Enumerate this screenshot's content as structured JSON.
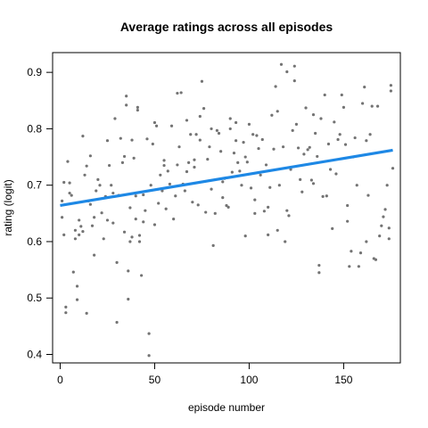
{
  "chart_data": {
    "type": "scatter",
    "title": "Average ratings across all episodes",
    "xlabel": "episode number",
    "ylabel": "rating (logit)",
    "xlim": [
      -4,
      180
    ],
    "ylim": [
      0.385,
      0.935
    ],
    "x_ticks": [
      0,
      50,
      100,
      150
    ],
    "y_ticks": [
      0.4,
      0.5,
      0.6,
      0.7,
      0.8,
      0.9
    ],
    "grid": false,
    "point_color": "#737373",
    "trend_color": "#1E88E5",
    "series": [
      {
        "values": [
          [
            1,
            0.672
          ],
          [
            1,
            0.643
          ],
          [
            2,
            0.705
          ],
          [
            2,
            0.612
          ],
          [
            3,
            0.484
          ],
          [
            3,
            0.474
          ],
          [
            4,
            0.742
          ],
          [
            5,
            0.686
          ],
          [
            5,
            0.704
          ],
          [
            6,
            0.682
          ],
          [
            7,
            0.546
          ],
          [
            8,
            0.62
          ],
          [
            8,
            0.605
          ],
          [
            9,
            0.497
          ],
          [
            9,
            0.521
          ],
          [
            10,
            0.612
          ],
          [
            10,
            0.638
          ],
          [
            11,
            0.627
          ],
          [
            12,
            0.618
          ],
          [
            12,
            0.787
          ],
          [
            13,
            0.718
          ],
          [
            14,
            0.734
          ],
          [
            14,
            0.473
          ],
          [
            15,
            0.672
          ],
          [
            16,
            0.752
          ],
          [
            16,
            0.666
          ],
          [
            17,
            0.628
          ],
          [
            18,
            0.576
          ],
          [
            18,
            0.643
          ],
          [
            19,
            0.69
          ],
          [
            20,
            0.71
          ],
          [
            21,
            0.7
          ],
          [
            22,
            0.651
          ],
          [
            23,
            0.605
          ],
          [
            24,
            0.68
          ],
          [
            25,
            0.779
          ],
          [
            25,
            0.638
          ],
          [
            26,
            0.735
          ],
          [
            27,
            0.7
          ],
          [
            28,
            0.633
          ],
          [
            28,
            0.686
          ],
          [
            29,
            0.818
          ],
          [
            30,
            0.563
          ],
          [
            30,
            0.457
          ],
          [
            31,
            0.682
          ],
          [
            32,
            0.783
          ],
          [
            33,
            0.74
          ],
          [
            34,
            0.617
          ],
          [
            34,
            0.751
          ],
          [
            35,
            0.842
          ],
          [
            35,
            0.858
          ],
          [
            36,
            0.498
          ],
          [
            36,
            0.548
          ],
          [
            37,
            0.6
          ],
          [
            37,
            0.66
          ],
          [
            38,
            0.78
          ],
          [
            38,
            0.608
          ],
          [
            39,
            0.748
          ],
          [
            40,
            0.681
          ],
          [
            40,
            0.64
          ],
          [
            41,
            0.833
          ],
          [
            41,
            0.838
          ],
          [
            42,
            0.611
          ],
          [
            42,
            0.6
          ],
          [
            43,
            0.54
          ],
          [
            44,
            0.683
          ],
          [
            44,
            0.635
          ],
          [
            45,
            0.655
          ],
          [
            46,
            0.782
          ],
          [
            47,
            0.437
          ],
          [
            47,
            0.398
          ],
          [
            48,
            0.7
          ],
          [
            49,
            0.773
          ],
          [
            50,
            0.63
          ],
          [
            50,
            0.811
          ],
          [
            51,
            0.805
          ],
          [
            52,
            0.668
          ],
          [
            53,
            0.718
          ],
          [
            54,
            0.69
          ],
          [
            55,
            0.744
          ],
          [
            55,
            0.735
          ],
          [
            56,
            0.658
          ],
          [
            57,
            0.725
          ],
          [
            58,
            0.702
          ],
          [
            59,
            0.805
          ],
          [
            60,
            0.64
          ],
          [
            61,
            0.681
          ],
          [
            62,
            0.736
          ],
          [
            62,
            0.863
          ],
          [
            63,
            0.768
          ],
          [
            64,
            0.864
          ],
          [
            65,
            0.702
          ],
          [
            66,
            0.69
          ],
          [
            67,
            0.815
          ],
          [
            67,
            0.724
          ],
          [
            68,
            0.74
          ],
          [
            69,
            0.79
          ],
          [
            70,
            0.67
          ],
          [
            71,
            0.745
          ],
          [
            71,
            0.732
          ],
          [
            72,
            0.79
          ],
          [
            73,
            0.665
          ],
          [
            74,
            0.78
          ],
          [
            74,
            0.822
          ],
          [
            75,
            0.884
          ],
          [
            76,
            0.836
          ],
          [
            77,
            0.652
          ],
          [
            78,
            0.746
          ],
          [
            79,
            0.768
          ],
          [
            80,
            0.8
          ],
          [
            80,
            0.693
          ],
          [
            81,
            0.593
          ],
          [
            82,
            0.65
          ],
          [
            83,
            0.797
          ],
          [
            84,
            0.792
          ],
          [
            85,
            0.76
          ],
          [
            86,
            0.678
          ],
          [
            86,
            0.706
          ],
          [
            87,
            0.712
          ],
          [
            88,
            0.664
          ],
          [
            89,
            0.661
          ],
          [
            90,
            0.8
          ],
          [
            90,
            0.818
          ],
          [
            91,
            0.723
          ],
          [
            92,
            0.757
          ],
          [
            93,
            0.811
          ],
          [
            93,
            0.779
          ],
          [
            94,
            0.74
          ],
          [
            95,
            0.725
          ],
          [
            96,
            0.7
          ],
          [
            97,
            0.776
          ],
          [
            98,
            0.61
          ],
          [
            98,
            0.75
          ],
          [
            99,
            0.741
          ],
          [
            100,
            0.808
          ],
          [
            101,
            0.695
          ],
          [
            102,
            0.79
          ],
          [
            103,
            0.674
          ],
          [
            103,
            0.65
          ],
          [
            104,
            0.788
          ],
          [
            105,
            0.765
          ],
          [
            106,
            0.718
          ],
          [
            107,
            0.781
          ],
          [
            108,
            0.654
          ],
          [
            109,
            0.736
          ],
          [
            110,
            0.612
          ],
          [
            110,
            0.661
          ],
          [
            111,
            0.696
          ],
          [
            112,
            0.824
          ],
          [
            113,
            0.764
          ],
          [
            114,
            0.875
          ],
          [
            115,
            0.62
          ],
          [
            115,
            0.831
          ],
          [
            116,
            0.7
          ],
          [
            117,
            0.914
          ],
          [
            118,
            0.768
          ],
          [
            119,
            0.6
          ],
          [
            120,
            0.655
          ],
          [
            120,
            0.901
          ],
          [
            121,
            0.646
          ],
          [
            122,
            0.728
          ],
          [
            123,
            0.797
          ],
          [
            124,
            0.885
          ],
          [
            124,
            0.911
          ],
          [
            125,
            0.808
          ],
          [
            126,
            0.766
          ],
          [
            127,
            0.71
          ],
          [
            128,
            0.688
          ],
          [
            129,
            0.755
          ],
          [
            130,
            0.837
          ],
          [
            131,
            0.763
          ],
          [
            132,
            0.767
          ],
          [
            133,
            0.709
          ],
          [
            134,
            0.703
          ],
          [
            134,
            0.825
          ],
          [
            135,
            0.792
          ],
          [
            136,
            0.751
          ],
          [
            137,
            0.545
          ],
          [
            137,
            0.558
          ],
          [
            138,
            0.818
          ],
          [
            139,
            0.68
          ],
          [
            140,
            0.86
          ],
          [
            141,
            0.681
          ],
          [
            142,
            0.773
          ],
          [
            143,
            0.728
          ],
          [
            144,
            0.623
          ],
          [
            145,
            0.812
          ],
          [
            146,
            0.72
          ],
          [
            147,
            0.781
          ],
          [
            148,
            0.79
          ],
          [
            149,
            0.86
          ],
          [
            150,
            0.838
          ],
          [
            151,
            0.772
          ],
          [
            152,
            0.664
          ],
          [
            152,
            0.636
          ],
          [
            153,
            0.556
          ],
          [
            154,
            0.583
          ],
          [
            155,
            0.75
          ],
          [
            156,
            0.784
          ],
          [
            157,
            0.7
          ],
          [
            158,
            0.556
          ],
          [
            159,
            0.58
          ],
          [
            160,
            0.845
          ],
          [
            161,
            0.874
          ],
          [
            162,
            0.6
          ],
          [
            162,
            0.779
          ],
          [
            163,
            0.682
          ],
          [
            164,
            0.79
          ],
          [
            165,
            0.84
          ],
          [
            166,
            0.57
          ],
          [
            167,
            0.568
          ],
          [
            168,
            0.84
          ],
          [
            169,
            0.61
          ],
          [
            170,
            0.628
          ],
          [
            171,
            0.644
          ],
          [
            172,
            0.657
          ],
          [
            173,
            0.7
          ],
          [
            174,
            0.624
          ],
          [
            174,
            0.605
          ],
          [
            175,
            0.877
          ],
          [
            175,
            0.867
          ],
          [
            176,
            0.73
          ]
        ]
      }
    ],
    "trend_line": {
      "x": [
        0,
        176
      ],
      "y": [
        0.664,
        0.762
      ]
    }
  }
}
